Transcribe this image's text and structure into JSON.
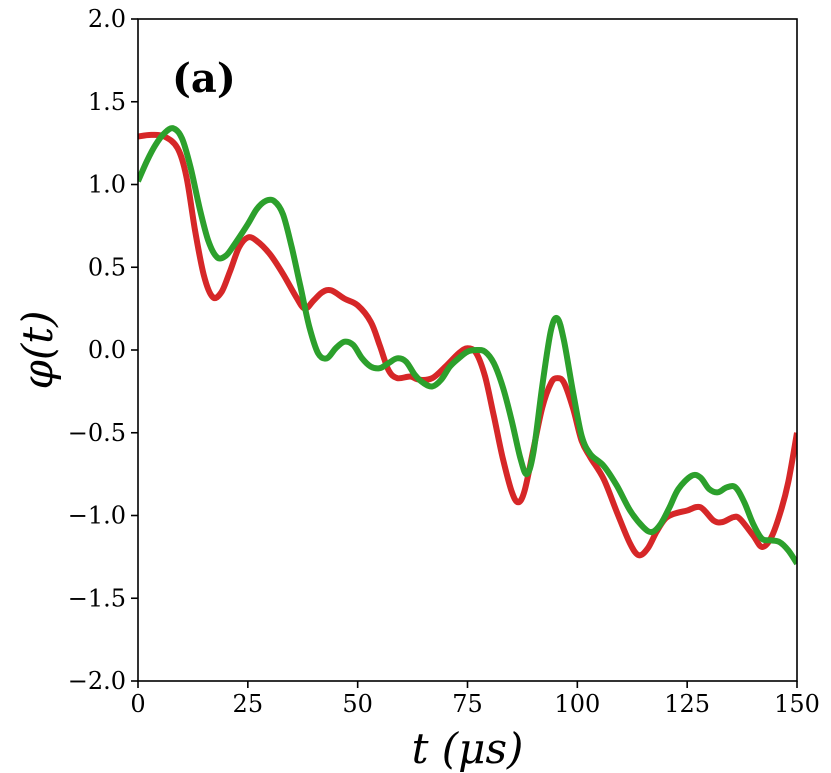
{
  "chart_data": {
    "type": "line",
    "panel_label": "(a)",
    "xlabel": "t (μs)",
    "ylabel": "φ(t)",
    "xlim": [
      0,
      150
    ],
    "ylim": [
      -2.0,
      2.0
    ],
    "x_ticks": [
      "0",
      "25",
      "50",
      "75",
      "100",
      "125",
      "150"
    ],
    "y_ticks": [
      "2.0",
      "1.5",
      "1.0",
      "0.5",
      "0.0",
      "−0.5",
      "−1.0",
      "−1.5",
      "−2.0"
    ],
    "grid": false,
    "series": [
      {
        "color": "#d62728",
        "points": [
          [
            0,
            1.29
          ],
          [
            3,
            1.3
          ],
          [
            6,
            1.29
          ],
          [
            9,
            1.22
          ],
          [
            11,
            1.05
          ],
          [
            13,
            0.72
          ],
          [
            15,
            0.45
          ],
          [
            17,
            0.32
          ],
          [
            19,
            0.35
          ],
          [
            21,
            0.48
          ],
          [
            23,
            0.62
          ],
          [
            25,
            0.68
          ],
          [
            27,
            0.66
          ],
          [
            30,
            0.58
          ],
          [
            33,
            0.46
          ],
          [
            36,
            0.32
          ],
          [
            38,
            0.25
          ],
          [
            40,
            0.3
          ],
          [
            42,
            0.35
          ],
          [
            44,
            0.36
          ],
          [
            47,
            0.31
          ],
          [
            50,
            0.27
          ],
          [
            53,
            0.17
          ],
          [
            55,
            0.03
          ],
          [
            57,
            -0.12
          ],
          [
            59,
            -0.17
          ],
          [
            62,
            -0.16
          ],
          [
            64,
            -0.18
          ],
          [
            67,
            -0.17
          ],
          [
            70,
            -0.1
          ],
          [
            73,
            -0.02
          ],
          [
            75,
            0.01
          ],
          [
            77,
            -0.02
          ],
          [
            79,
            -0.16
          ],
          [
            81,
            -0.4
          ],
          [
            83,
            -0.65
          ],
          [
            85,
            -0.85
          ],
          [
            86.5,
            -0.92
          ],
          [
            88,
            -0.85
          ],
          [
            90,
            -0.6
          ],
          [
            92,
            -0.35
          ],
          [
            94,
            -0.2
          ],
          [
            95.5,
            -0.17
          ],
          [
            97,
            -0.2
          ],
          [
            99,
            -0.35
          ],
          [
            101,
            -0.55
          ],
          [
            103,
            -0.65
          ],
          [
            106,
            -0.78
          ],
          [
            109,
            -0.98
          ],
          [
            112,
            -1.17
          ],
          [
            114,
            -1.24
          ],
          [
            116,
            -1.2
          ],
          [
            118,
            -1.1
          ],
          [
            120,
            -1.02
          ],
          [
            122,
            -0.99
          ],
          [
            125,
            -0.97
          ],
          [
            128,
            -0.95
          ],
          [
            131,
            -1.03
          ],
          [
            133,
            -1.04
          ],
          [
            135.5,
            -1.01
          ],
          [
            137,
            -1.02
          ],
          [
            140,
            -1.12
          ],
          [
            142,
            -1.19
          ],
          [
            144,
            -1.14
          ],
          [
            146,
            -1.0
          ],
          [
            148,
            -0.8
          ],
          [
            150,
            -0.5
          ]
        ]
      },
      {
        "color": "#2ca02c",
        "points": [
          [
            0,
            1.02
          ],
          [
            2,
            1.14
          ],
          [
            4,
            1.24
          ],
          [
            6,
            1.31
          ],
          [
            8,
            1.34
          ],
          [
            10,
            1.28
          ],
          [
            12,
            1.1
          ],
          [
            14,
            0.86
          ],
          [
            16,
            0.66
          ],
          [
            18,
            0.56
          ],
          [
            20,
            0.57
          ],
          [
            22,
            0.64
          ],
          [
            25,
            0.76
          ],
          [
            27,
            0.85
          ],
          [
            29,
            0.9
          ],
          [
            31,
            0.9
          ],
          [
            33,
            0.82
          ],
          [
            35,
            0.62
          ],
          [
            37,
            0.38
          ],
          [
            39,
            0.14
          ],
          [
            41,
            -0.02
          ],
          [
            43,
            -0.05
          ],
          [
            45,
            0.01
          ],
          [
            47,
            0.05
          ],
          [
            49,
            0.03
          ],
          [
            51,
            -0.05
          ],
          [
            53,
            -0.1
          ],
          [
            55,
            -0.11
          ],
          [
            57,
            -0.08
          ],
          [
            59,
            -0.05
          ],
          [
            61,
            -0.07
          ],
          [
            63,
            -0.15
          ],
          [
            65,
            -0.2
          ],
          [
            67,
            -0.22
          ],
          [
            69,
            -0.18
          ],
          [
            71,
            -0.1
          ],
          [
            73,
            -0.05
          ],
          [
            75,
            -0.01
          ],
          [
            77,
            0.0
          ],
          [
            79,
            -0.01
          ],
          [
            81,
            -0.08
          ],
          [
            83,
            -0.22
          ],
          [
            85,
            -0.42
          ],
          [
            87,
            -0.65
          ],
          [
            88.5,
            -0.75
          ],
          [
            90,
            -0.62
          ],
          [
            92,
            -0.22
          ],
          [
            94,
            0.12
          ],
          [
            95.5,
            0.19
          ],
          [
            97,
            0.05
          ],
          [
            99,
            -0.25
          ],
          [
            101,
            -0.52
          ],
          [
            103,
            -0.63
          ],
          [
            106,
            -0.7
          ],
          [
            109,
            -0.82
          ],
          [
            112,
            -0.97
          ],
          [
            115,
            -1.07
          ],
          [
            117,
            -1.1
          ],
          [
            119,
            -1.05
          ],
          [
            121,
            -0.95
          ],
          [
            123,
            -0.84
          ],
          [
            126,
            -0.76
          ],
          [
            128,
            -0.77
          ],
          [
            130,
            -0.84
          ],
          [
            132,
            -0.86
          ],
          [
            134,
            -0.83
          ],
          [
            136,
            -0.83
          ],
          [
            138,
            -0.92
          ],
          [
            140,
            -1.05
          ],
          [
            142,
            -1.14
          ],
          [
            144,
            -1.15
          ],
          [
            146,
            -1.16
          ],
          [
            148,
            -1.21
          ],
          [
            150,
            -1.29
          ]
        ]
      }
    ]
  }
}
